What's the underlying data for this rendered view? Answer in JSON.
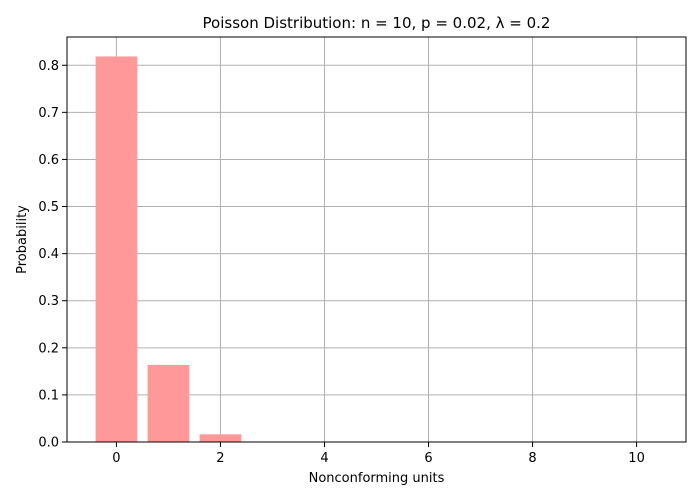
{
  "chart_data": {
    "type": "bar",
    "title": "Poisson Distribution: n = 10, p = 0.02, λ =  0.2",
    "xlabel": "Nonconforming units",
    "ylabel": "Probability",
    "x": [
      0,
      1,
      2,
      3,
      4,
      5,
      6,
      7,
      8,
      9,
      10
    ],
    "values": [
      0.8187,
      0.1637,
      0.0164,
      0.0011,
      0.0001,
      0.0,
      0.0,
      0.0,
      0.0,
      0.0,
      0.0
    ],
    "xlim": [
      -0.95,
      10.95
    ],
    "ylim": [
      0,
      0.86
    ],
    "xticks": [
      0,
      2,
      4,
      6,
      8,
      10
    ],
    "yticks": [
      0.0,
      0.1,
      0.2,
      0.3,
      0.4,
      0.5,
      0.6,
      0.7,
      0.8
    ],
    "ytick_labels": [
      "0.0",
      "0.1",
      "0.2",
      "0.3",
      "0.4",
      "0.5",
      "0.6",
      "0.7",
      "0.8"
    ],
    "grid": true,
    "bar_color": "#ff9999"
  }
}
